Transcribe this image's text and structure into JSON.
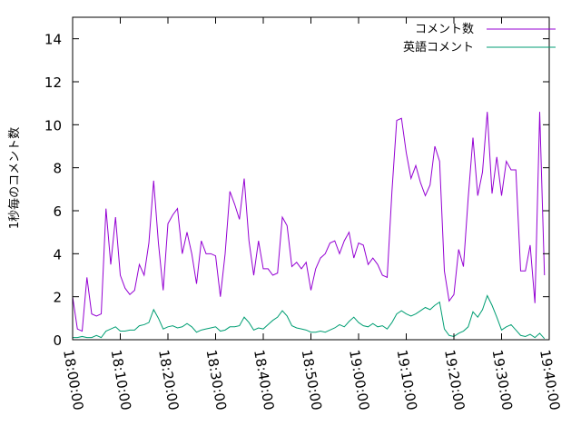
{
  "chart_data": {
    "type": "line",
    "title": "",
    "xlabel": "",
    "ylabel": "1秒毎のコメント数",
    "ylim": [
      0,
      15
    ],
    "y_ticks": [
      0,
      2,
      4,
      6,
      8,
      10,
      12,
      14
    ],
    "x_ticks": [
      "18:00:00",
      "18:10:00",
      "18:20:00",
      "18:30:00",
      "18:40:00",
      "18:50:00",
      "19:00:00",
      "19:10:00",
      "19:20:00",
      "19:30:00",
      "19:40:00"
    ],
    "x_start": "18:00:00",
    "x_step_seconds": 60,
    "grid": false,
    "legend_position": "top-right",
    "series": [
      {
        "name": "コメント数",
        "color": "#9400d3",
        "values": [
          2.0,
          0.5,
          0.4,
          2.9,
          1.2,
          1.1,
          1.2,
          6.1,
          3.5,
          5.7,
          3.0,
          2.4,
          2.1,
          2.3,
          3.5,
          3.0,
          4.5,
          7.4,
          4.5,
          2.3,
          5.4,
          5.8,
          6.1,
          4.0,
          5.0,
          4.0,
          2.6,
          4.6,
          4.0,
          4.0,
          3.9,
          2.0,
          4.0,
          6.9,
          6.3,
          5.6,
          7.5,
          4.6,
          3.0,
          4.6,
          3.3,
          3.3,
          3.0,
          3.1,
          5.7,
          5.3,
          3.4,
          3.6,
          3.3,
          3.6,
          2.3,
          3.3,
          3.8,
          4.0,
          4.5,
          4.6,
          4.0,
          4.6,
          5.0,
          3.8,
          4.5,
          4.4,
          3.5,
          3.8,
          3.5,
          3.0,
          2.9,
          6.9,
          10.2,
          10.3,
          8.7,
          7.5,
          8.1,
          7.3,
          6.7,
          7.2,
          9.0,
          8.3,
          3.2,
          1.8,
          2.1,
          4.2,
          3.4,
          6.6,
          9.4,
          6.7,
          7.8,
          10.6,
          6.8,
          8.5,
          6.7,
          8.3,
          7.9,
          7.9,
          3.2,
          3.2,
          4.4,
          1.7,
          10.6,
          3.0
        ]
      },
      {
        "name": "英語コメント",
        "color": "#009e73",
        "values": [
          0.1,
          0.1,
          0.15,
          0.1,
          0.1,
          0.2,
          0.1,
          0.4,
          0.5,
          0.6,
          0.4,
          0.4,
          0.45,
          0.45,
          0.65,
          0.7,
          0.8,
          1.4,
          1.0,
          0.5,
          0.6,
          0.65,
          0.55,
          0.6,
          0.75,
          0.6,
          0.35,
          0.45,
          0.5,
          0.55,
          0.6,
          0.4,
          0.45,
          0.6,
          0.6,
          0.65,
          1.05,
          0.8,
          0.45,
          0.55,
          0.5,
          0.7,
          0.9,
          1.05,
          1.35,
          1.1,
          0.65,
          0.55,
          0.5,
          0.45,
          0.35,
          0.35,
          0.4,
          0.35,
          0.45,
          0.55,
          0.7,
          0.6,
          0.85,
          1.05,
          0.8,
          0.65,
          0.6,
          0.75,
          0.6,
          0.65,
          0.5,
          0.8,
          1.2,
          1.35,
          1.2,
          1.1,
          1.2,
          1.35,
          1.5,
          1.4,
          1.6,
          1.75,
          0.5,
          0.2,
          0.15,
          0.3,
          0.4,
          0.6,
          1.3,
          1.05,
          1.4,
          2.05,
          1.6,
          1.05,
          0.45,
          0.6,
          0.7,
          0.45,
          0.2,
          0.15,
          0.25,
          0.1,
          0.3,
          0.05
        ]
      }
    ]
  }
}
